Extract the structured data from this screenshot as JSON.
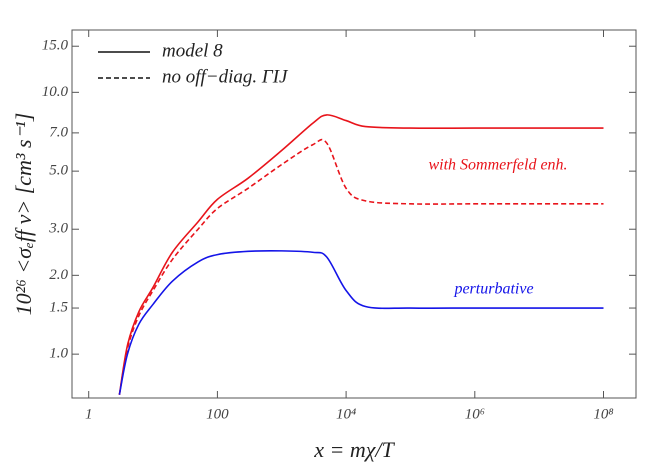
{
  "chart_data": {
    "type": "line",
    "x_label": "x = mχ/T",
    "y_label": "10²⁶ <σₑff v>  [cm³ s⁻¹]",
    "log_x": true,
    "log_y": true,
    "xlim": [
      0.55,
      320000000
    ],
    "ylim": [
      0.68,
      17.3
    ],
    "xticks": [
      1,
      100,
      {
        "value": 10000,
        "label": "10⁴"
      },
      {
        "value": 1000000,
        "label": "10⁶"
      },
      {
        "value": 100000000,
        "label": "10⁸"
      }
    ],
    "yticks": [
      {
        "value": 1,
        "label": "1.0"
      },
      1.5,
      {
        "value": 2,
        "label": "2.0"
      },
      {
        "value": 3,
        "label": "3.0"
      },
      {
        "value": 5,
        "label": "5.0"
      },
      {
        "value": 7,
        "label": "7.0"
      },
      {
        "value": 10,
        "label": "10.0"
      },
      {
        "value": 15,
        "label": "15.0"
      }
    ],
    "x": [
      3,
      4,
      6,
      10,
      20,
      50,
      100,
      300,
      1000,
      3000,
      5000,
      10000,
      20000,
      100000,
      1000000,
      10000000,
      100000000
    ],
    "series": [
      {
        "color": "#e8141b",
        "dashed": false,
        "values": [
          0.7,
          1.08,
          1.45,
          1.8,
          2.45,
          3.2,
          3.9,
          4.7,
          6.0,
          7.6,
          8.2,
          7.8,
          7.4,
          7.3,
          7.3,
          7.3,
          7.3
        ]
      },
      {
        "color": "#e8141b",
        "dashed": true,
        "values": [
          0.7,
          1.05,
          1.4,
          1.75,
          2.3,
          3.0,
          3.6,
          4.3,
          5.3,
          6.3,
          6.4,
          4.3,
          3.85,
          3.75,
          3.75,
          3.75,
          3.75
        ]
      },
      {
        "color": "#1414e8",
        "dashed": false,
        "values": [
          0.7,
          1.0,
          1.3,
          1.55,
          1.9,
          2.25,
          2.4,
          2.47,
          2.48,
          2.45,
          2.35,
          1.75,
          1.52,
          1.5,
          1.5,
          1.5,
          1.5
        ]
      }
    ],
    "legend": [
      {
        "label": "model 8",
        "dashed": false
      },
      {
        "label": "no off−diag. ΓIJ",
        "dashed": true
      }
    ],
    "annotations": [
      {
        "text": "with Sommerfeld enh.",
        "color": "#e8141b"
      },
      {
        "text": "perturbative",
        "color": "#1414e8"
      }
    ]
  }
}
